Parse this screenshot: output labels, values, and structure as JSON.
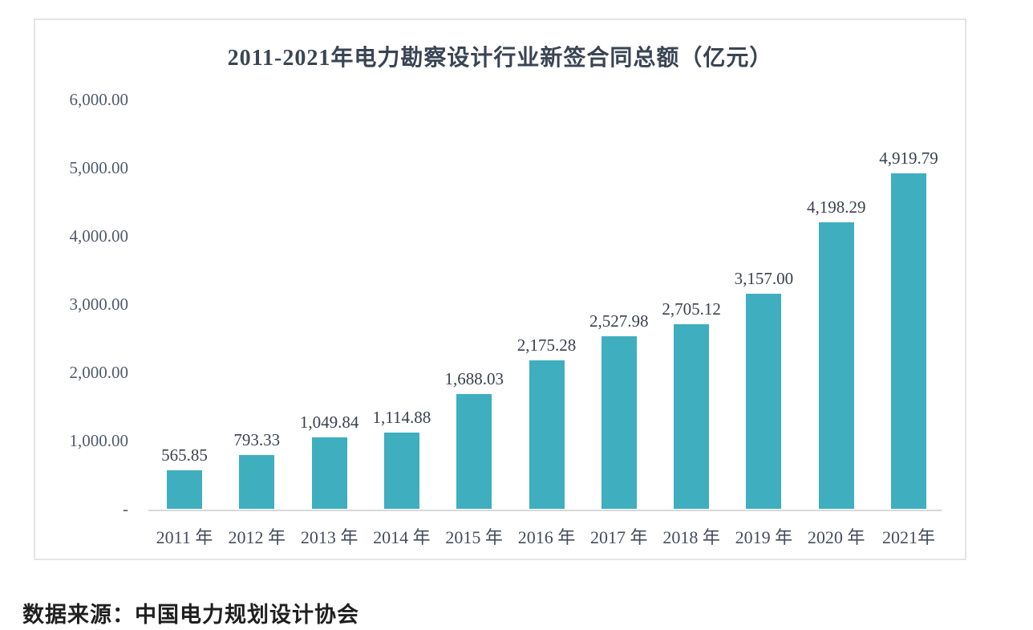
{
  "chart_data": {
    "type": "bar",
    "title": "2011-2021年电力勘察设计行业新签合同总额（亿元）",
    "categories": [
      "2011 年",
      "2012 年",
      "2013 年",
      "2014 年",
      "2015 年",
      "2016 年",
      "2017 年",
      "2018 年",
      "2019 年",
      "2020 年",
      "2021年"
    ],
    "values": [
      565.85,
      793.33,
      1049.84,
      1114.88,
      1688.03,
      2175.28,
      2527.98,
      2705.12,
      3157.0,
      4198.29,
      4919.79
    ],
    "value_labels": [
      "565.85",
      "793.33",
      "1,049.84",
      "1,114.88",
      "1,688.03",
      "2,175.28",
      "2,527.98",
      "2,705.12",
      "3,157.00",
      "4,198.29",
      "4,919.79"
    ],
    "ylim": [
      0,
      6000
    ],
    "yticks": [
      {
        "value": 6000,
        "label": "6,000.00"
      },
      {
        "value": 5000,
        "label": "5,000.00"
      },
      {
        "value": 4000,
        "label": "4,000.00"
      },
      {
        "value": 3000,
        "label": "3,000.00"
      },
      {
        "value": 2000,
        "label": "2,000.00"
      },
      {
        "value": 1000,
        "label": "1,000.00"
      },
      {
        "value": 0,
        "label": "-"
      }
    ],
    "grid": false,
    "legend": false,
    "bar_color": "#3FAEBE",
    "axis_line_color": "#d9d9d9"
  },
  "footer": {
    "source": "数据来源：中国电力规划设计协会"
  }
}
